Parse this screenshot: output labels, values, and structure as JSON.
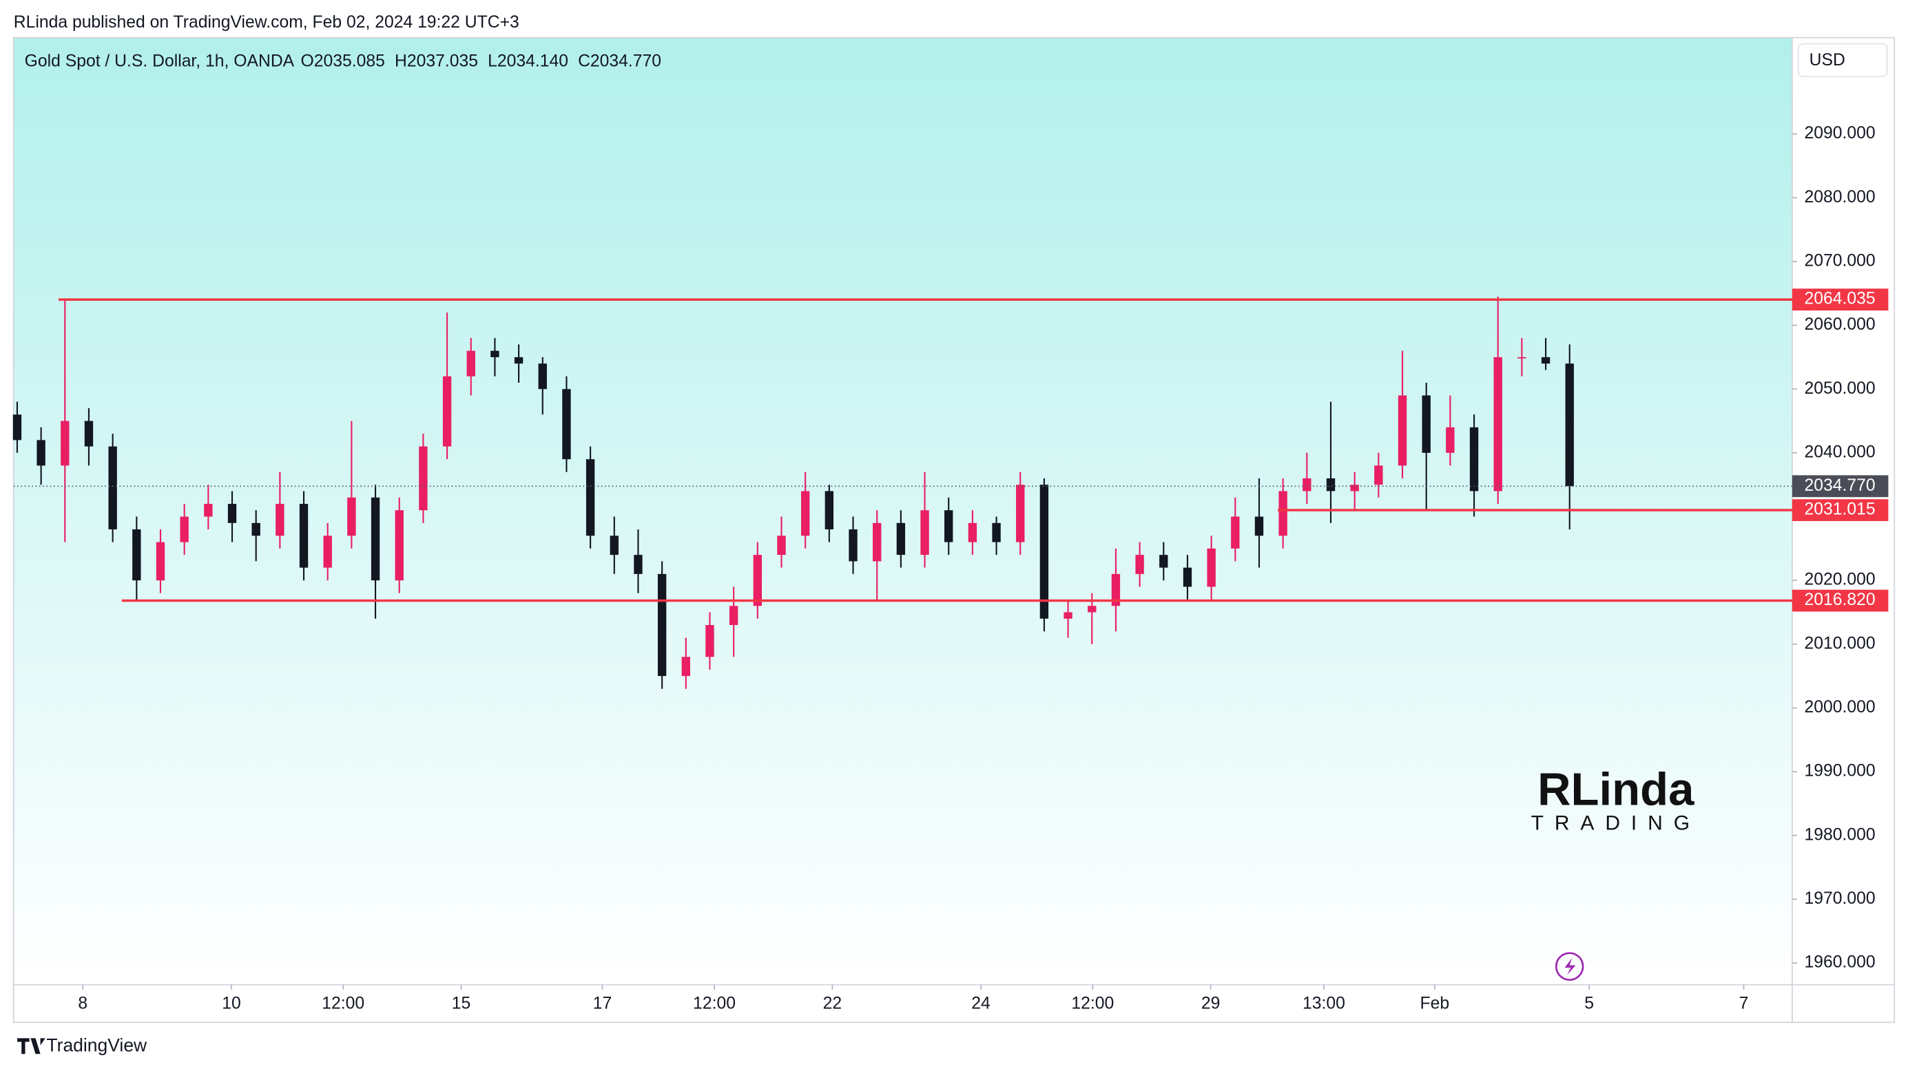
{
  "header": {
    "publisher": "RLinda published on TradingView.com, Feb 02, 2024 19:22 UTC+3",
    "footer": "TradingView"
  },
  "chart_data": {
    "type": "candlestick",
    "title": "Gold Spot / U.S. Dollar, 1h, OANDA",
    "ohlc_header": [
      "O2035.085",
      "H2037.035",
      "L2034.140",
      "C2034.770"
    ],
    "currency": "USD",
    "logo": {
      "name": "RLinda",
      "tagline": "TRADING"
    },
    "up_color": "#e91e63",
    "down_color": "#131722",
    "level_color": "#f23645",
    "x": [
      0,
      1,
      2,
      3,
      4,
      5,
      6,
      7,
      8,
      9,
      10,
      11,
      12,
      13,
      14,
      15,
      16,
      17,
      18,
      19,
      20,
      21,
      22,
      23,
      24,
      25,
      26,
      27,
      28,
      29,
      30,
      31,
      32,
      33,
      34,
      35,
      36,
      37,
      38,
      39,
      40,
      41,
      42,
      43,
      44,
      45,
      46,
      47,
      48,
      49,
      50,
      51,
      52,
      53,
      54,
      55,
      56,
      57,
      58,
      59,
      60,
      61,
      62,
      63,
      64,
      65
    ],
    "open": [
      2046,
      2042,
      2038,
      2045,
      2041,
      2028,
      2020,
      2026,
      2030,
      2032,
      2029,
      2027,
      2032,
      2022,
      2027,
      2033,
      2020,
      2031,
      2041,
      2052,
      2056,
      2055,
      2054,
      2050,
      2039,
      2027,
      2024,
      2021,
      2005,
      2008,
      2013,
      2016,
      2024,
      2027,
      2034,
      2028,
      2023,
      2029,
      2024,
      2031,
      2026,
      2029,
      2026,
      2035,
      2014,
      2015,
      2016,
      2021,
      2024,
      2022,
      2019,
      2025,
      2030,
      2027,
      2034,
      2036,
      2034,
      2035,
      2038,
      2049,
      2040,
      2044,
      2034,
      2055,
      2055,
      2054
    ],
    "high": [
      2048,
      2044,
      2064,
      2047,
      2043,
      2030,
      2028,
      2032,
      2035,
      2034,
      2031,
      2037,
      2034,
      2029,
      2045,
      2035,
      2033,
      2043,
      2062,
      2058,
      2058,
      2057,
      2055,
      2052,
      2041,
      2030,
      2028,
      2023,
      2011,
      2015,
      2019,
      2026,
      2030,
      2037,
      2035,
      2030,
      2031,
      2031,
      2037,
      2033,
      2031,
      2030,
      2037,
      2036,
      2017,
      2018,
      2025,
      2026,
      2026,
      2024,
      2027,
      2033,
      2036,
      2036,
      2040,
      2048,
      2037,
      2040,
      2056,
      2051,
      2049,
      2046,
      2064.5,
      2058,
      2058,
      2057
    ],
    "low": [
      2040,
      2035,
      2026,
      2038,
      2026,
      2017,
      2018,
      2024,
      2028,
      2026,
      2023,
      2025,
      2020,
      2020,
      2025,
      2014,
      2018,
      2029,
      2039,
      2049,
      2052,
      2051,
      2046,
      2037,
      2025,
      2021,
      2018,
      2003,
      2003,
      2006,
      2008,
      2014,
      2022,
      2025,
      2026,
      2021,
      2017,
      2022,
      2022,
      2024,
      2024,
      2024,
      2024,
      2012,
      2011,
      2010,
      2012,
      2019,
      2020,
      2017,
      2017,
      2023,
      2022,
      2025,
      2032,
      2029,
      2031,
      2033,
      2036,
      2031,
      2038,
      2030,
      2032,
      2052,
      2053,
      2028
    ],
    "close": [
      2042,
      2038,
      2045,
      2041,
      2028,
      2020,
      2026,
      2030,
      2032,
      2029,
      2027,
      2032,
      2022,
      2027,
      2033,
      2020,
      2031,
      2041,
      2052,
      2056,
      2055,
      2054,
      2050,
      2039,
      2027,
      2024,
      2021,
      2005,
      2008,
      2013,
      2016,
      2024,
      2027,
      2034,
      2028,
      2023,
      2029,
      2024,
      2031,
      2026,
      2029,
      2026,
      2035,
      2014,
      2015,
      2016,
      2021,
      2024,
      2022,
      2019,
      2025,
      2030,
      2027,
      2034,
      2036,
      2034,
      2035,
      2038,
      2049,
      2040,
      2044,
      2034,
      2055,
      2055,
      2054,
      2034.77
    ],
    "levels": [
      {
        "value": 2064.035,
        "label": "2064.035",
        "x_start": 1.73
      },
      {
        "value": 2031.015,
        "label": "2031.015",
        "x_start": 52.78
      },
      {
        "value": 2016.82,
        "label": "2016.820",
        "x_start": 4.38
      }
    ],
    "last_price": {
      "value": 2034.77,
      "label": "2034.770"
    },
    "xlim": [
      -0.15,
      74.32
    ],
    "xticks": [
      {
        "value": 2.75,
        "label": "8"
      },
      {
        "value": 8.97,
        "label": "10"
      },
      {
        "value": 13.65,
        "label": "12:00"
      },
      {
        "value": 18.59,
        "label": "15"
      },
      {
        "value": 24.5,
        "label": "17"
      },
      {
        "value": 29.19,
        "label": "12:00"
      },
      {
        "value": 34.13,
        "label": "22"
      },
      {
        "value": 40.35,
        "label": "24"
      },
      {
        "value": 45.03,
        "label": "12:00"
      },
      {
        "value": 49.97,
        "label": "29"
      },
      {
        "value": 54.71,
        "label": "13:00"
      },
      {
        "value": 59.35,
        "label": "Feb"
      },
      {
        "value": 65.82,
        "label": "5"
      },
      {
        "value": 72.29,
        "label": "7"
      }
    ],
    "ylim": [
      1956.6,
      2105.1
    ],
    "yticks": [
      {
        "value": 1960,
        "label": "1960.000"
      },
      {
        "value": 1970,
        "label": "1970.000"
      },
      {
        "value": 1980,
        "label": "1980.000"
      },
      {
        "value": 1990,
        "label": "1990.000"
      },
      {
        "value": 2000,
        "label": "2000.000"
      },
      {
        "value": 2010,
        "label": "2010.000"
      },
      {
        "value": 2020,
        "label": "2020.000"
      },
      {
        "value": 2030,
        "label": "2030.000"
      },
      {
        "value": 2040,
        "label": "2040.000"
      },
      {
        "value": 2050,
        "label": "2050.000"
      },
      {
        "value": 2060,
        "label": "2060.000"
      },
      {
        "value": 2070,
        "label": "2070.000"
      },
      {
        "value": 2080,
        "label": "2080.000"
      },
      {
        "value": 2090,
        "label": "2090.000"
      }
    ]
  }
}
